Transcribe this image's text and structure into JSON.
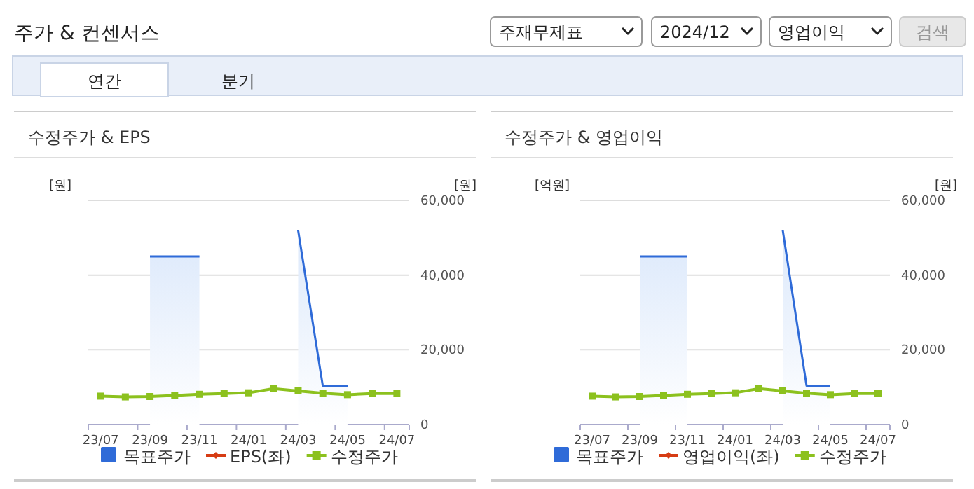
{
  "chart_data": [
    {
      "type": "other",
      "title": "주가 & 컨센서스",
      "annotations": [
        "주재무제표",
        "2024/12",
        "영업이익",
        "검색",
        "연간",
        "분기"
      ]
    },
    {
      "type": "line",
      "title": "수정주가 & EPS",
      "ylabel": "[원]",
      "y2label": "[원]",
      "categories": [
        "23/07",
        null,
        "23/09",
        null,
        "23/11",
        null,
        "24/01",
        null,
        "24/03",
        null,
        "24/05",
        null,
        "24/07"
      ],
      "y2lim": [
        0,
        60000
      ],
      "y2ticks": [
        {
          "value": 0,
          "label": "0"
        },
        {
          "value": 20000,
          "label": "20,000"
        },
        {
          "value": 40000,
          "label": "40,000"
        },
        {
          "value": 60000,
          "label": "60,000"
        }
      ],
      "grid": "y",
      "legend": "bottom",
      "series": [
        {
          "name": "목표주가",
          "type": "area",
          "color": "#2f6bd8",
          "axis": "y2",
          "marker": "none",
          "values": [
            null,
            null,
            45000,
            45000,
            45000,
            null,
            null,
            null,
            52000,
            10400,
            10400,
            null,
            null
          ]
        },
        {
          "name": "EPS(좌)",
          "type": "line",
          "color": "#d63c14",
          "marker": "diamond",
          "values": [
            null,
            null,
            null,
            null,
            null,
            null,
            null,
            null,
            null,
            null,
            null,
            null,
            null
          ]
        },
        {
          "name": "수정주가",
          "type": "line",
          "color": "#8cc11e",
          "axis": "y2",
          "marker": "square",
          "values": [
            7600,
            7400,
            7500,
            7800,
            8100,
            8300,
            8500,
            9600,
            9000,
            8400,
            8000,
            8300,
            8300
          ]
        }
      ]
    },
    {
      "type": "line",
      "title": "수정주가 & 영업이익",
      "ylabel": "[억원]",
      "y2label": "[원]",
      "categories": [
        "23/07",
        null,
        "23/09",
        null,
        "23/11",
        null,
        "24/01",
        null,
        "24/03",
        null,
        "24/05",
        null,
        "24/07"
      ],
      "y2lim": [
        0,
        60000
      ],
      "y2ticks": [
        {
          "value": 0,
          "label": "0"
        },
        {
          "value": 20000,
          "label": "20,000"
        },
        {
          "value": 40000,
          "label": "40,000"
        },
        {
          "value": 60000,
          "label": "60,000"
        }
      ],
      "grid": "y",
      "legend": "bottom",
      "series": [
        {
          "name": "목표주가",
          "type": "area",
          "color": "#2f6bd8",
          "axis": "y2",
          "marker": "none",
          "values": [
            null,
            null,
            45000,
            45000,
            45000,
            null,
            null,
            null,
            52000,
            10400,
            10400,
            null,
            null
          ]
        },
        {
          "name": "영업이익(좌)",
          "type": "line",
          "color": "#d63c14",
          "marker": "diamond",
          "values": [
            null,
            null,
            null,
            null,
            null,
            null,
            null,
            null,
            null,
            null,
            null,
            null,
            null
          ]
        },
        {
          "name": "수정주가",
          "type": "line",
          "color": "#8cc11e",
          "axis": "y2",
          "marker": "square",
          "values": [
            7600,
            7400,
            7500,
            7800,
            8100,
            8300,
            8500,
            9600,
            9000,
            8400,
            8000,
            8300,
            8300
          ]
        }
      ]
    }
  ]
}
